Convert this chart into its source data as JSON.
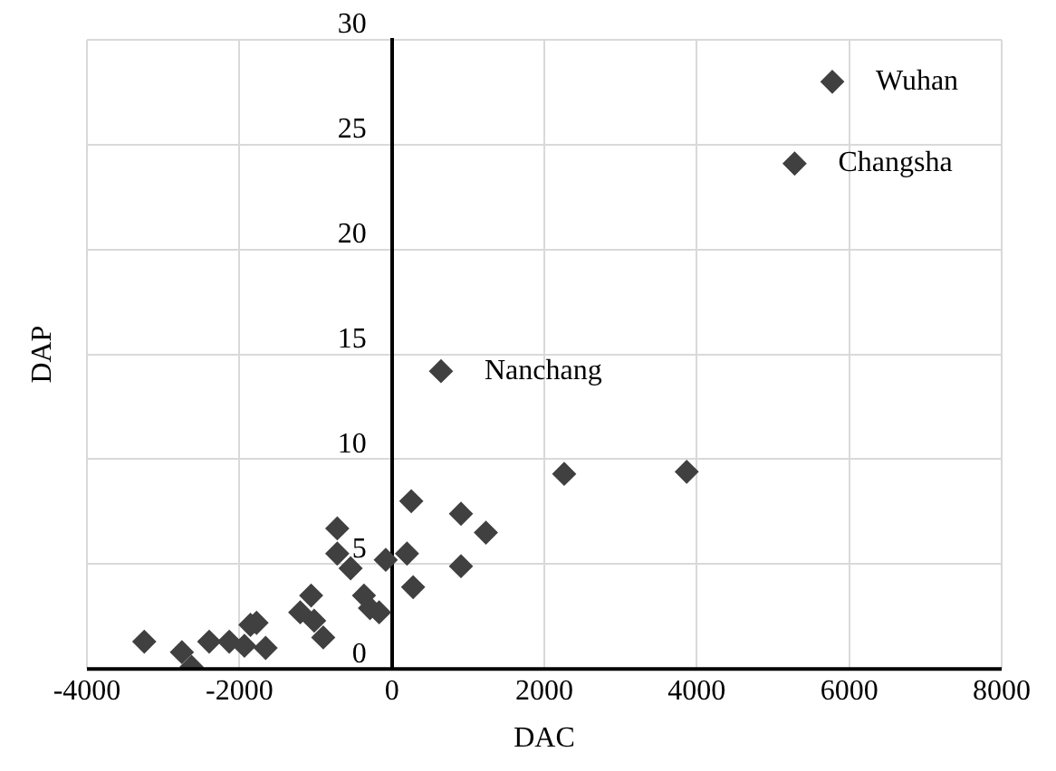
{
  "chart_data": {
    "type": "scatter",
    "xlabel": "DAC",
    "ylabel": "DAP",
    "x": [
      -3248,
      -2754,
      -2627,
      -2396,
      -2133,
      -1934,
      -1855,
      -1775,
      -1656,
      -1202,
      -1059,
      -1019,
      -900,
      -716,
      -716,
      -541,
      -366,
      -287,
      -167,
      -80,
      255,
      199,
      279,
      907,
      907,
      1234,
      645,
      2261,
      3868,
      5778,
      5284
    ],
    "values": [
      1.3,
      0.8,
      0.1,
      1.3,
      1.3,
      1.1,
      2.1,
      2.2,
      1.0,
      2.7,
      3.5,
      2.3,
      1.5,
      6.7,
      5.5,
      4.8,
      3.5,
      2.9,
      2.7,
      5.2,
      8.0,
      5.5,
      3.9,
      7.4,
      4.9,
      6.5,
      14.2,
      9.3,
      9.4,
      28.0,
      24.1
    ],
    "color": "#404040",
    "marker": "diamond",
    "xlim": [
      -4000,
      8000
    ],
    "xticks": [
      -4000,
      -2000,
      0,
      2000,
      4000,
      6000,
      8000
    ],
    "ylim": [
      0,
      30
    ],
    "yticks": [
      0,
      5,
      10,
      15,
      20,
      25,
      30
    ],
    "grid": true,
    "annotations": [
      {
        "text": "Wuhan",
        "x": 5778,
        "y": 28.0
      },
      {
        "text": "Changsha",
        "x": 5284,
        "y": 24.1
      },
      {
        "text": "Nanchang",
        "x": 645,
        "y": 14.2
      }
    ]
  }
}
